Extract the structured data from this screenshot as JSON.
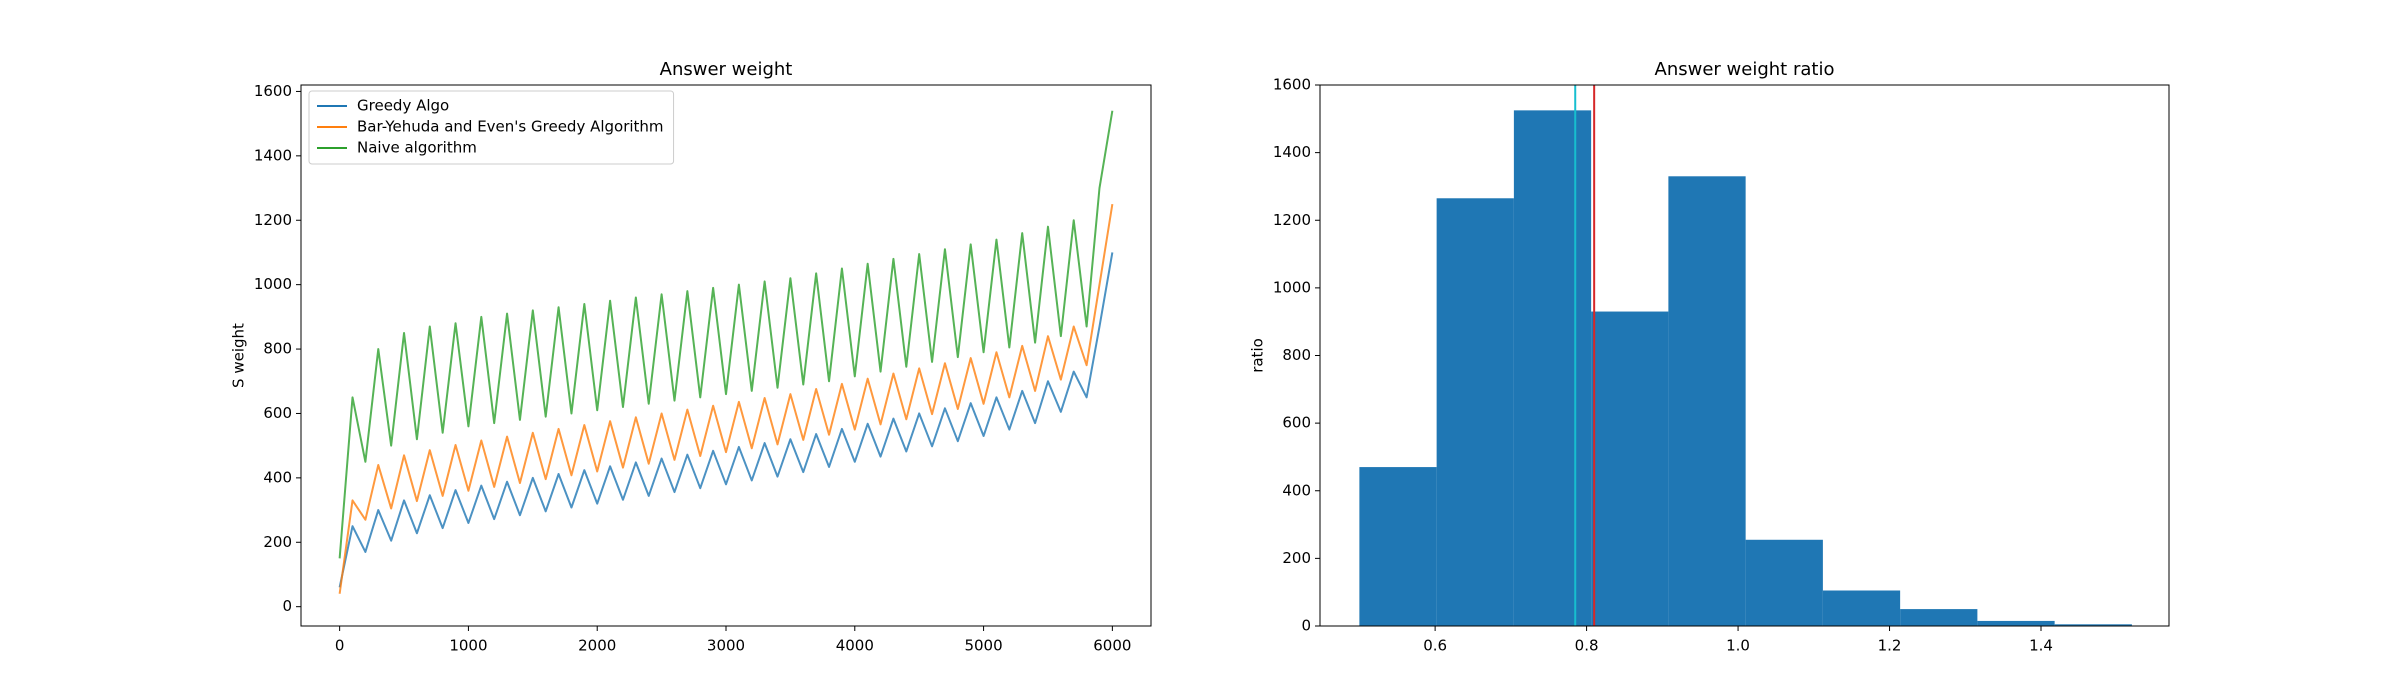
{
  "chart_data": [
    {
      "type": "line",
      "title": "Answer weight",
      "ylabel": "S weight",
      "x": [
        0,
        100,
        200,
        300,
        400,
        500,
        600,
        700,
        800,
        900,
        1000,
        1100,
        1200,
        1300,
        1400,
        1500,
        1600,
        1700,
        1800,
        1900,
        2000,
        2100,
        2200,
        2300,
        2400,
        2500,
        2600,
        2700,
        2800,
        2900,
        3000,
        3100,
        3200,
        3300,
        3400,
        3500,
        3600,
        3700,
        3800,
        3900,
        4000,
        4100,
        4200,
        4300,
        4400,
        4500,
        4600,
        4700,
        4800,
        4900,
        5000,
        5100,
        5200,
        5300,
        5400,
        5500,
        5600,
        5700,
        5800,
        5900,
        6000
      ],
      "series": [
        {
          "name": "Greedy Algo",
          "color": "#1f77b4",
          "values": [
            60,
            250,
            170,
            300,
            205,
            330,
            228,
            346,
            244,
            362,
            260,
            376,
            272,
            388,
            284,
            400,
            296,
            412,
            308,
            424,
            320,
            436,
            332,
            448,
            344,
            460,
            356,
            472,
            368,
            484,
            380,
            496,
            392,
            508,
            404,
            520,
            418,
            536,
            434,
            552,
            450,
            568,
            466,
            584,
            482,
            600,
            498,
            616,
            514,
            632,
            530,
            650,
            550,
            670,
            570,
            700,
            605,
            730,
            650,
            870,
            1100
          ]
        },
        {
          "name": "Bar-Yehuda and Even's Greedy Algorithm",
          "color": "#ff7f0e",
          "values": [
            40,
            330,
            270,
            440,
            305,
            470,
            328,
            486,
            344,
            502,
            360,
            516,
            372,
            528,
            384,
            540,
            396,
            552,
            408,
            564,
            420,
            576,
            432,
            588,
            444,
            600,
            456,
            612,
            468,
            624,
            480,
            636,
            492,
            648,
            504,
            660,
            518,
            676,
            534,
            692,
            550,
            708,
            566,
            724,
            582,
            740,
            598,
            756,
            614,
            772,
            630,
            790,
            650,
            810,
            670,
            840,
            705,
            870,
            750,
            1000,
            1250
          ]
        },
        {
          "name": "Naive algorithm",
          "color": "#2ca02c",
          "values": [
            150,
            650,
            450,
            800,
            500,
            850,
            520,
            870,
            540,
            880,
            560,
            900,
            570,
            910,
            580,
            920,
            590,
            930,
            600,
            940,
            610,
            950,
            620,
            960,
            630,
            970,
            640,
            980,
            650,
            990,
            660,
            1000,
            670,
            1010,
            680,
            1020,
            690,
            1035,
            700,
            1050,
            715,
            1065,
            730,
            1080,
            745,
            1095,
            760,
            1110,
            775,
            1125,
            790,
            1140,
            805,
            1160,
            820,
            1180,
            840,
            1200,
            870,
            1300,
            1540
          ]
        }
      ],
      "xlim": [
        -300,
        6300
      ],
      "xticks": [
        0,
        1000,
        2000,
        3000,
        4000,
        5000,
        6000
      ],
      "ylim": [
        -60,
        1620
      ],
      "yticks": [
        0,
        200,
        400,
        600,
        800,
        1000,
        1200,
        1400,
        1600
      ],
      "legend": "upper left"
    },
    {
      "type": "histogram",
      "title": "Answer weight ratio",
      "ylabel": "ratio",
      "color": "#1f77b4",
      "bins": [
        0.5,
        0.602,
        0.704,
        0.806,
        0.908,
        1.01,
        1.112,
        1.214,
        1.316,
        1.418,
        1.52
      ],
      "values": [
        470,
        1265,
        1525,
        930,
        1330,
        255,
        105,
        50,
        15,
        5
      ],
      "xlim": [
        0.448,
        1.569
      ],
      "xticks": [
        0.6,
        0.8,
        {
          "value": 1.0,
          "label": "1.0"
        },
        1.2,
        1.4
      ],
      "ylim": [
        0,
        1600
      ],
      "yticks": [
        0,
        200,
        400,
        600,
        800,
        1000,
        1200,
        1400,
        1600
      ],
      "vlines": [
        {
          "value": 0.785,
          "color": "#17becf"
        },
        {
          "value": 0.81,
          "color": "#d62728"
        }
      ]
    }
  ]
}
